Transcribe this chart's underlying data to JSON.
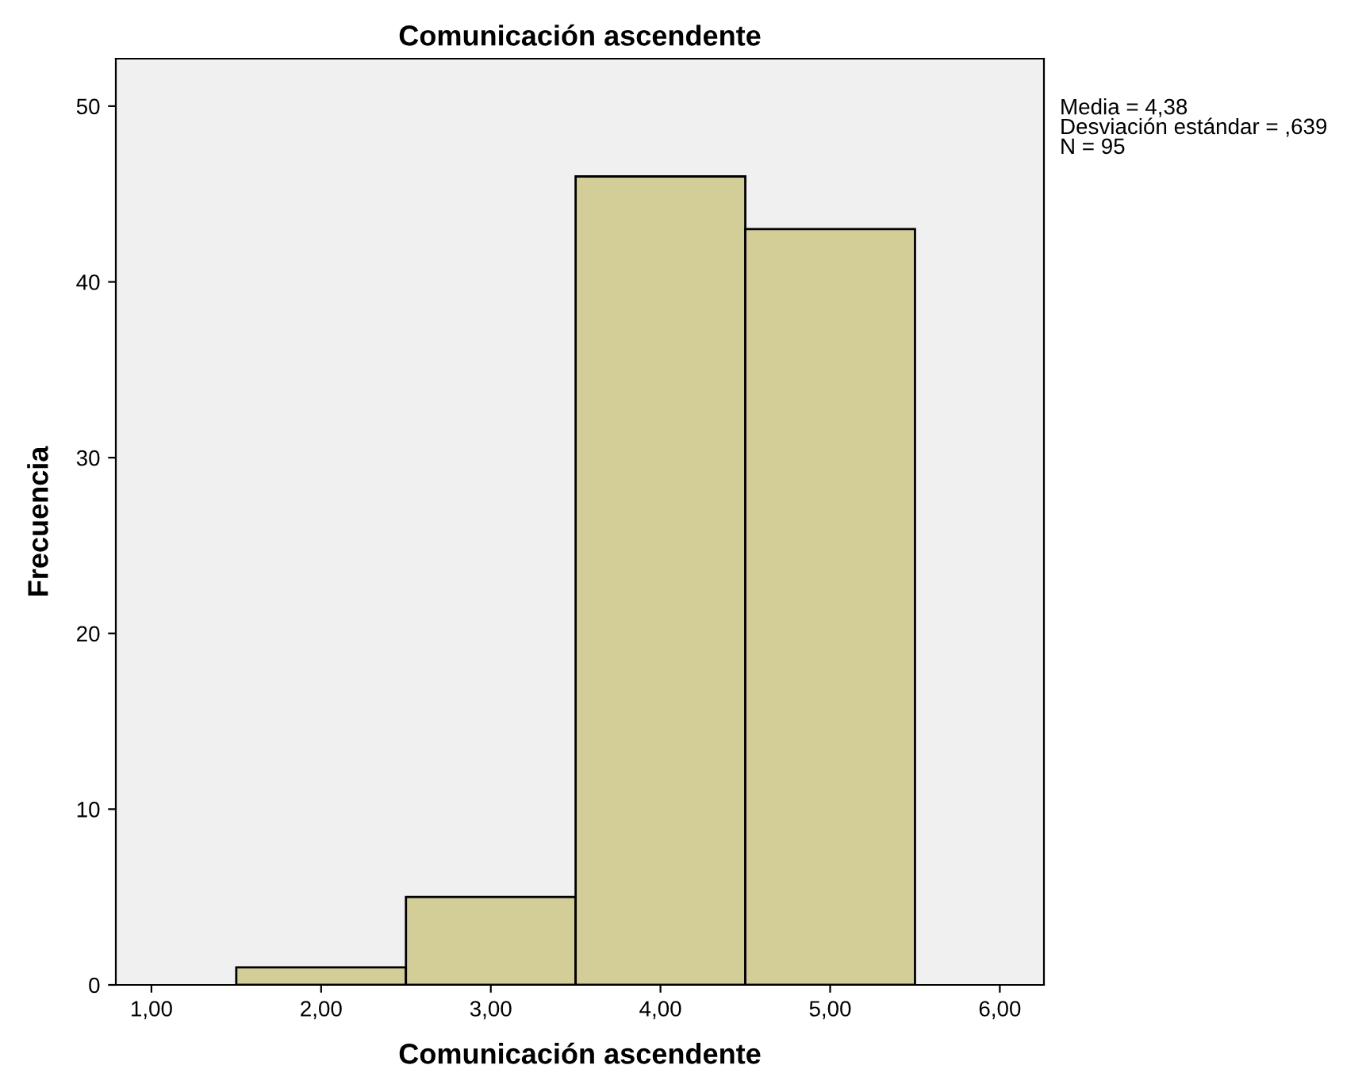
{
  "chart_data": {
    "type": "histogram",
    "title": "Comunicación ascendente",
    "xlabel": "Comunicación ascendente",
    "ylabel": "Frecuencia",
    "bins": [
      1.5,
      2.5,
      3.5,
      4.5,
      5.5
    ],
    "values": [
      1,
      5,
      46,
      43
    ],
    "color": "#d3ce98",
    "xlim": [
      0.79,
      6.26
    ],
    "ylim": [
      0,
      52.7
    ],
    "xticks": [
      {
        "value": 1,
        "label": "1,00"
      },
      {
        "value": 2,
        "label": "2,00"
      },
      {
        "value": 3,
        "label": "3,00"
      },
      {
        "value": 4,
        "label": "4,00"
      },
      {
        "value": 5,
        "label": "5,00"
      },
      {
        "value": 6,
        "label": "6,00"
      }
    ],
    "yticks": [
      0,
      10,
      20,
      30,
      40,
      50
    ],
    "grid": false,
    "annotations": [
      "Media = 4,38\nDesviación estándar = ,639\nN = 95"
    ]
  }
}
